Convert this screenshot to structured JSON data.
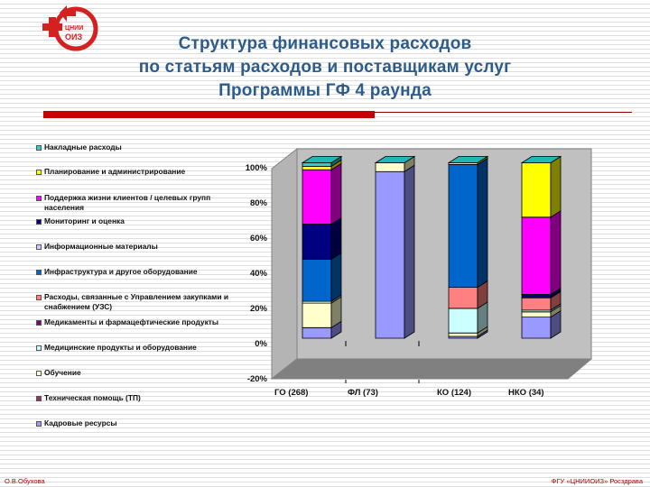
{
  "header": {
    "title_lines": [
      "Структура финансовых расходов",
      "по статьям расходов и поставщикам услуг",
      "Программы ГФ 4 раунда"
    ],
    "logo_text_top": "ЦНИИ",
    "logo_text_bottom": "ОИЗ",
    "accent_color": "#c80000",
    "title_color": "#2e5c8a"
  },
  "legend": {
    "items": [
      {
        "label": "Накладные расходы",
        "color": "#33cccc"
      },
      {
        "label": "Планирование и администрирование",
        "color": "#ffff00"
      },
      {
        "label": "Поддержка жизни клиентов / целевых групп населения",
        "color": "#ff00ff"
      },
      {
        "label": "Мониторинг и оценка",
        "color": "#000080"
      },
      {
        "label": "Информационные материалы",
        "color": "#ccccff"
      },
      {
        "label": "Инфраструктура и другое оборудование",
        "color": "#0066cc"
      },
      {
        "label": "Расходы, связанные с Управлением закупками и снабжением (УЗС)",
        "color": "#ff8080"
      },
      {
        "label": "Медикаменты и фармацефтические продукты",
        "color": "#800080"
      },
      {
        "label": "Медицинские продукты и оборудование",
        "color": "#ccffff"
      },
      {
        "label": "Обучение",
        "color": "#ffffcc"
      },
      {
        "label": "Техническая помощь (ТП)",
        "color": "#993366"
      },
      {
        "label": "Кадровые ресурсы",
        "color": "#9999ff"
      }
    ]
  },
  "chart_data": {
    "type": "bar",
    "stacked": true,
    "percent": true,
    "three_d": true,
    "title": "Структура финансовых расходов по статьям расходов и поставщикам услуг Программы ГФ 4 раунда",
    "xlabel": "",
    "ylabel": "",
    "ylim": [
      -20,
      100
    ],
    "y_ticks": [
      "100%",
      "80%",
      "60%",
      "40%",
      "20%",
      "0%",
      "-20%"
    ],
    "legend_position": "left",
    "categories": [
      "ГО  (268)",
      "ФЛ (73)",
      "КО (124)",
      "НКО (34)"
    ],
    "series": [
      {
        "name": "Кадровые ресурсы",
        "color": "#9999ff",
        "values": [
          6,
          95,
          1,
          12
        ]
      },
      {
        "name": "Техническая помощь (ТП)",
        "color": "#993366",
        "values": [
          0,
          0,
          0,
          0
        ]
      },
      {
        "name": "Обучение",
        "color": "#ffffcc",
        "values": [
          14,
          5,
          2,
          3
        ]
      },
      {
        "name": "Медицинские продукты и оборудование",
        "color": "#ccffff",
        "values": [
          1,
          0,
          14,
          1
        ]
      },
      {
        "name": "Медикаменты и фармацефтические продукты",
        "color": "#800080",
        "values": [
          0,
          0,
          0,
          0
        ]
      },
      {
        "name": "Расходы, связанные с Управлением закупками и снабжением (УЗС)",
        "color": "#ff8080",
        "values": [
          0,
          0,
          12,
          7
        ]
      },
      {
        "name": "Инфраструктура и другое оборудование",
        "color": "#0066cc",
        "values": [
          24,
          0,
          70,
          0
        ]
      },
      {
        "name": "Информационные материалы",
        "color": "#ccccff",
        "values": [
          0,
          0,
          0,
          0
        ]
      },
      {
        "name": "Мониторинг и оценка",
        "color": "#000080",
        "values": [
          20,
          0,
          0,
          2
        ]
      },
      {
        "name": "Поддержка жизни клиентов / целевых групп населения",
        "color": "#ff00ff",
        "values": [
          31,
          0,
          0,
          44
        ]
      },
      {
        "name": "Планирование и администрирование",
        "color": "#ffff00",
        "values": [
          2,
          0,
          1,
          31
        ]
      },
      {
        "name": "Накладные расходы",
        "color": "#33cccc",
        "values": [
          2,
          0,
          0,
          0
        ]
      }
    ]
  },
  "footer": {
    "left": "О.В.Обухова",
    "right": "ФГУ «ЦНИИОИЗ» Росздрава"
  }
}
